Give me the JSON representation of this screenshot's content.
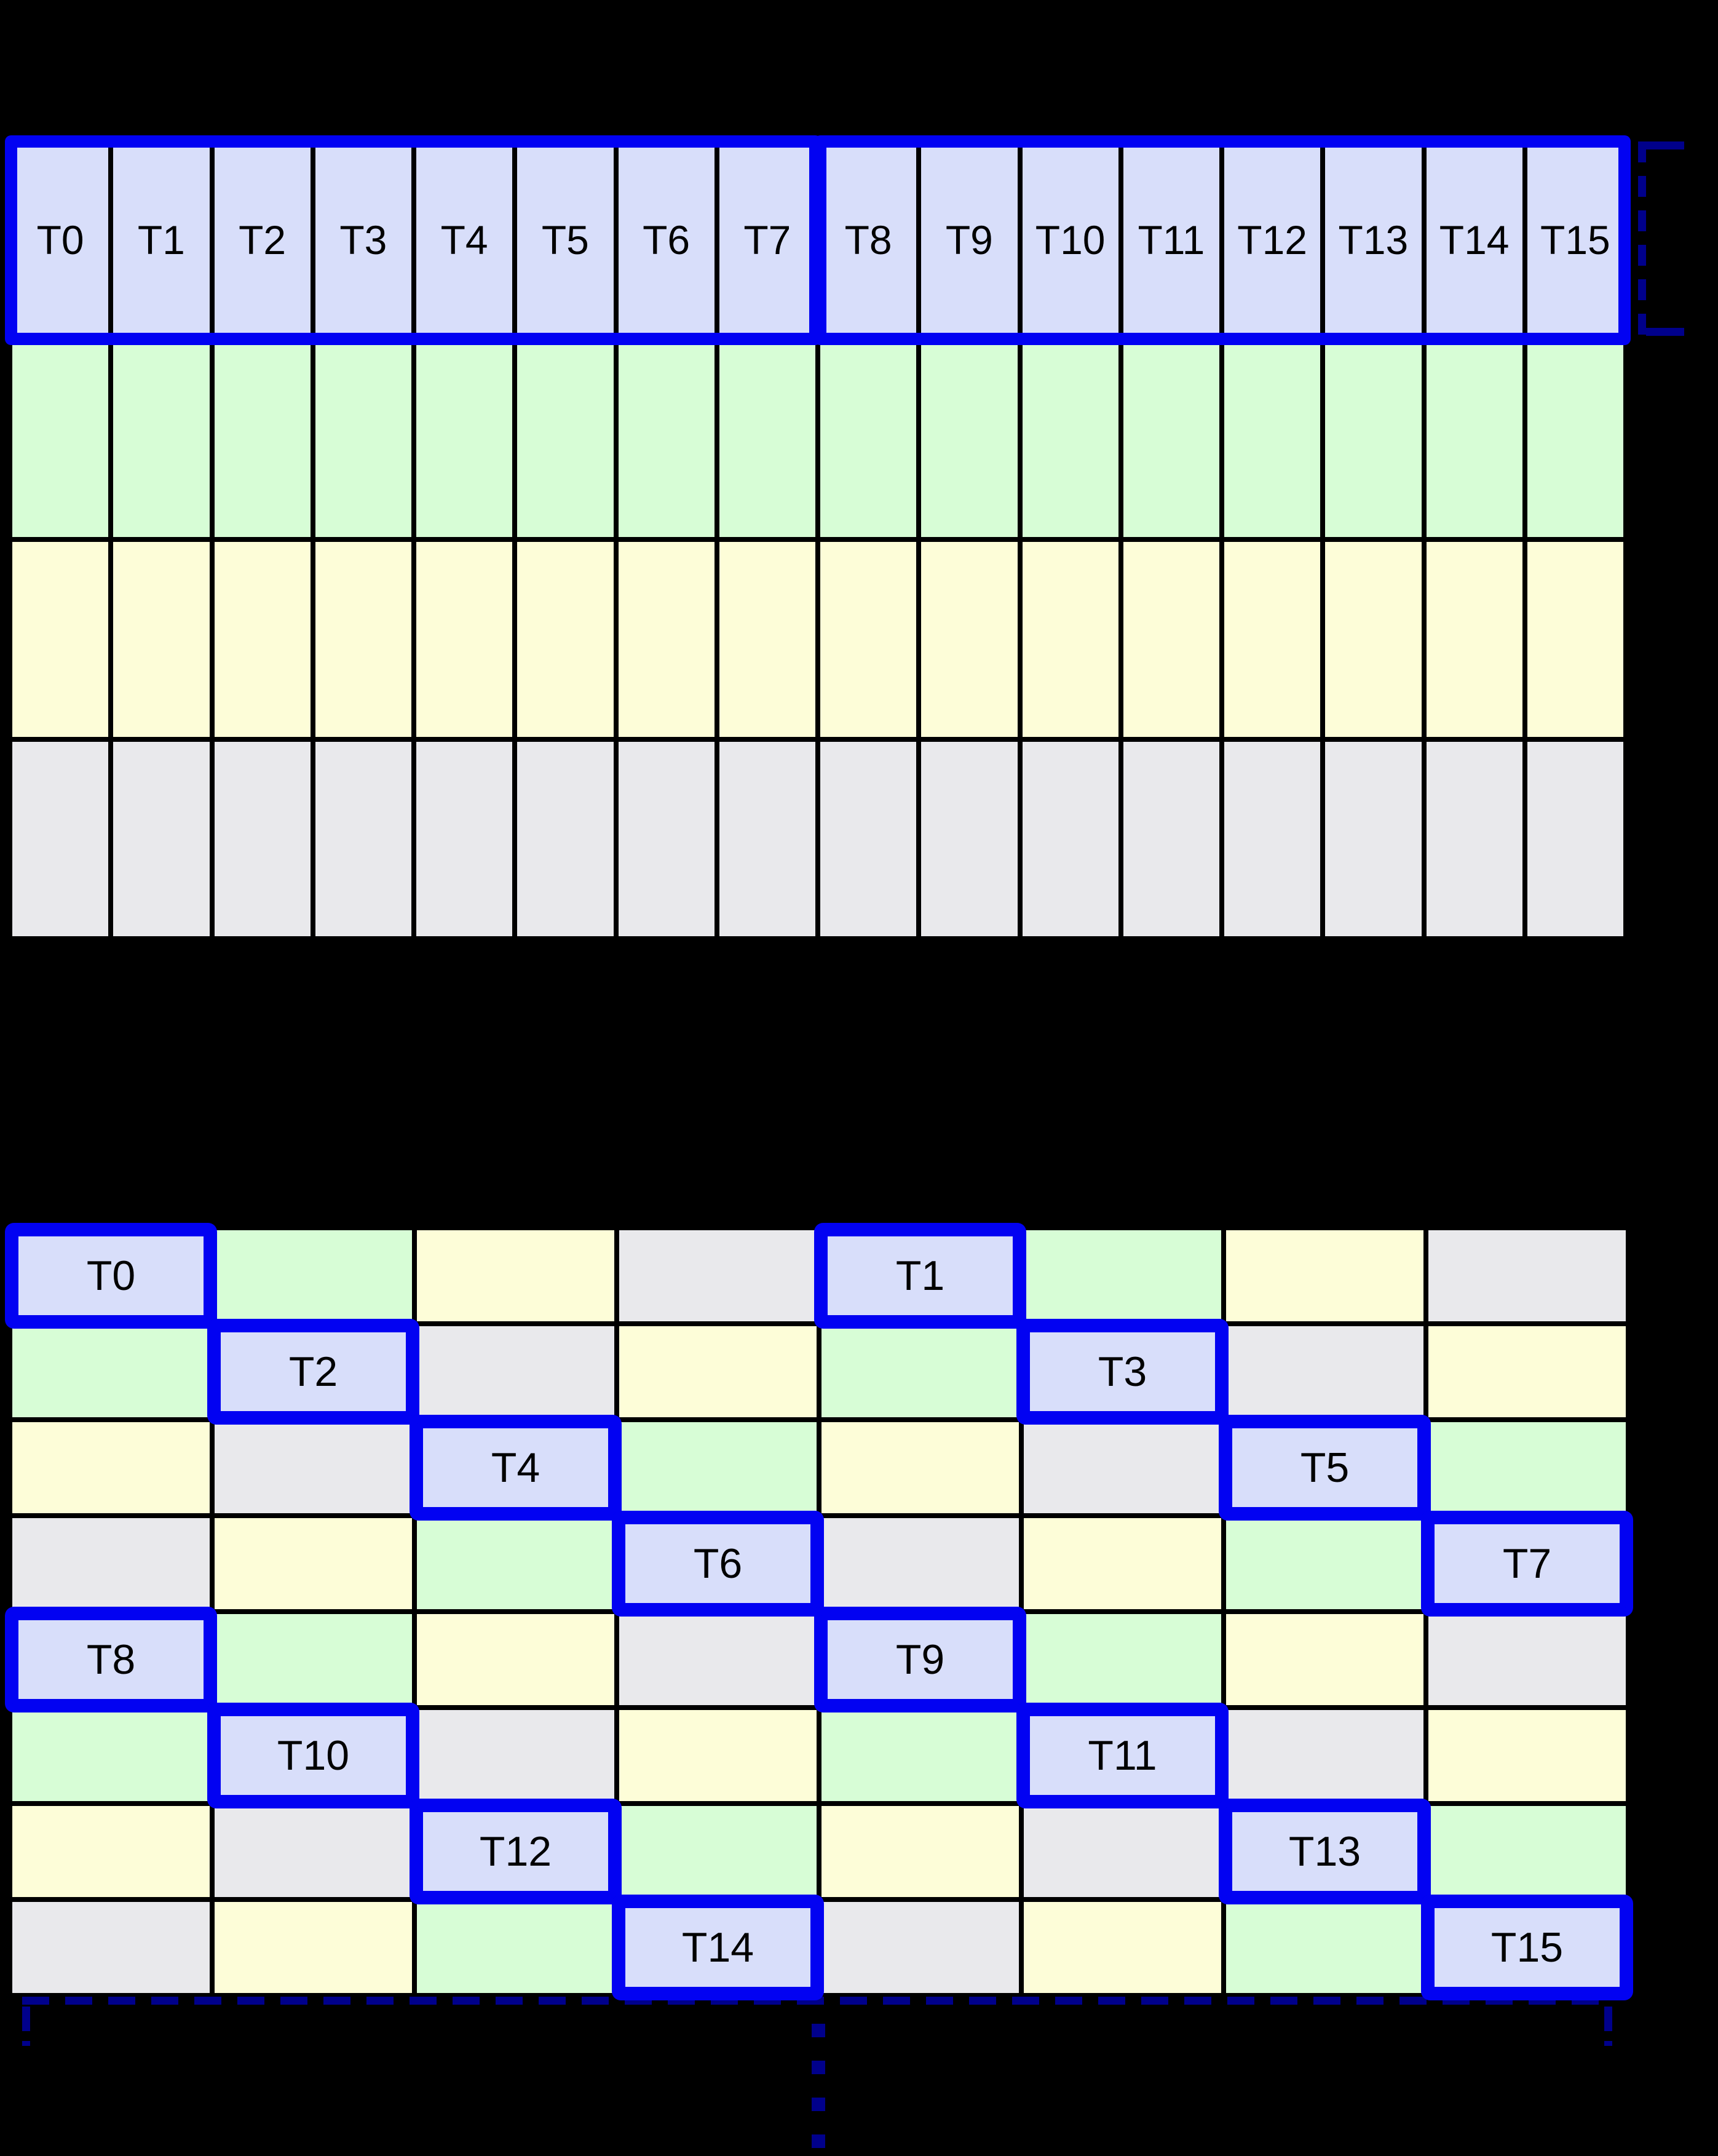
{
  "palette": {
    "background": "#000000",
    "thread_fill": "#d8defa",
    "green_fill": "#d7fdd6",
    "yellow_fill": "#fdfdd8",
    "gray_fill": "#e9e9ec",
    "highlight_blue": "#0202f2",
    "bracket_navy": "#00008b",
    "grid_line_black": "#000000",
    "label_color": "#000000"
  },
  "linear_grid": {
    "columns": 16,
    "thread_row": {
      "fill": "thread_fill",
      "labels": [
        "T0",
        "T1",
        "T2",
        "T3",
        "T4",
        "T5",
        "T6",
        "T7",
        "T8",
        "T9",
        "T10",
        "T11",
        "T12",
        "T13",
        "T14",
        "T15"
      ],
      "highlight_groups": [
        {
          "first": "T0",
          "last": "T7"
        },
        {
          "first": "T8",
          "last": "T15"
        }
      ]
    },
    "data_rows": [
      {
        "fill": "green_fill"
      },
      {
        "fill": "yellow_fill"
      },
      {
        "fill": "gray_fill"
      }
    ]
  },
  "swizzled_grid": {
    "columns": 8,
    "rows": [
      {
        "cells": [
          {
            "fill": "thread_fill",
            "label": "T0",
            "highlighted": true
          },
          {
            "fill": "green_fill"
          },
          {
            "fill": "yellow_fill"
          },
          {
            "fill": "gray_fill"
          },
          {
            "fill": "thread_fill",
            "label": "T1",
            "highlighted": true
          },
          {
            "fill": "green_fill"
          },
          {
            "fill": "yellow_fill"
          },
          {
            "fill": "gray_fill"
          }
        ]
      },
      {
        "cells": [
          {
            "fill": "green_fill"
          },
          {
            "fill": "thread_fill",
            "label": "T2",
            "highlighted": true
          },
          {
            "fill": "gray_fill"
          },
          {
            "fill": "yellow_fill"
          },
          {
            "fill": "green_fill"
          },
          {
            "fill": "thread_fill",
            "label": "T3",
            "highlighted": true
          },
          {
            "fill": "gray_fill"
          },
          {
            "fill": "yellow_fill"
          }
        ]
      },
      {
        "cells": [
          {
            "fill": "yellow_fill"
          },
          {
            "fill": "gray_fill"
          },
          {
            "fill": "thread_fill",
            "label": "T4",
            "highlighted": true
          },
          {
            "fill": "green_fill"
          },
          {
            "fill": "yellow_fill"
          },
          {
            "fill": "gray_fill"
          },
          {
            "fill": "thread_fill",
            "label": "T5",
            "highlighted": true
          },
          {
            "fill": "green_fill"
          }
        ]
      },
      {
        "cells": [
          {
            "fill": "gray_fill"
          },
          {
            "fill": "yellow_fill"
          },
          {
            "fill": "green_fill"
          },
          {
            "fill": "thread_fill",
            "label": "T6",
            "highlighted": true
          },
          {
            "fill": "gray_fill"
          },
          {
            "fill": "yellow_fill"
          },
          {
            "fill": "green_fill"
          },
          {
            "fill": "thread_fill",
            "label": "T7",
            "highlighted": true
          }
        ]
      },
      {
        "cells": [
          {
            "fill": "thread_fill",
            "label": "T8",
            "highlighted": true
          },
          {
            "fill": "green_fill"
          },
          {
            "fill": "yellow_fill"
          },
          {
            "fill": "gray_fill"
          },
          {
            "fill": "thread_fill",
            "label": "T9",
            "highlighted": true
          },
          {
            "fill": "green_fill"
          },
          {
            "fill": "yellow_fill"
          },
          {
            "fill": "gray_fill"
          }
        ]
      },
      {
        "cells": [
          {
            "fill": "green_fill"
          },
          {
            "fill": "thread_fill",
            "label": "T10",
            "highlighted": true
          },
          {
            "fill": "gray_fill"
          },
          {
            "fill": "yellow_fill"
          },
          {
            "fill": "green_fill"
          },
          {
            "fill": "thread_fill",
            "label": "T11",
            "highlighted": true
          },
          {
            "fill": "gray_fill"
          },
          {
            "fill": "yellow_fill"
          }
        ]
      },
      {
        "cells": [
          {
            "fill": "yellow_fill"
          },
          {
            "fill": "gray_fill"
          },
          {
            "fill": "thread_fill",
            "label": "T12",
            "highlighted": true
          },
          {
            "fill": "green_fill"
          },
          {
            "fill": "yellow_fill"
          },
          {
            "fill": "gray_fill"
          },
          {
            "fill": "thread_fill",
            "label": "T13",
            "highlighted": true
          },
          {
            "fill": "green_fill"
          }
        ]
      },
      {
        "cells": [
          {
            "fill": "gray_fill"
          },
          {
            "fill": "yellow_fill"
          },
          {
            "fill": "green_fill"
          },
          {
            "fill": "thread_fill",
            "label": "T14",
            "highlighted": true
          },
          {
            "fill": "gray_fill"
          },
          {
            "fill": "yellow_fill"
          },
          {
            "fill": "green_fill"
          },
          {
            "fill": "thread_fill",
            "label": "T15",
            "highlighted": true
          }
        ]
      }
    ]
  },
  "annotations": {
    "continuation_dots": 4
  }
}
